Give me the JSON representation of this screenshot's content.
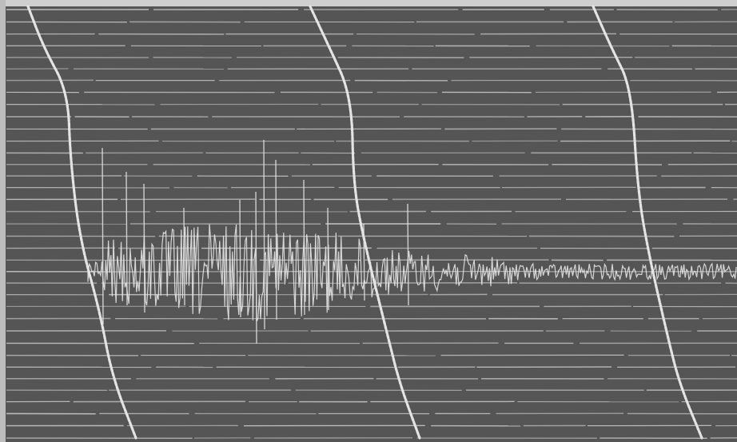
{
  "image": {
    "description_type": "oscillograph-recording",
    "background_color": "#555555",
    "trace_color": "#e4e4e4",
    "grid_line_color": "#cfcfcf",
    "grid_line_count": 37,
    "timing_curve_count": 3,
    "signal_bursts": 1
  }
}
